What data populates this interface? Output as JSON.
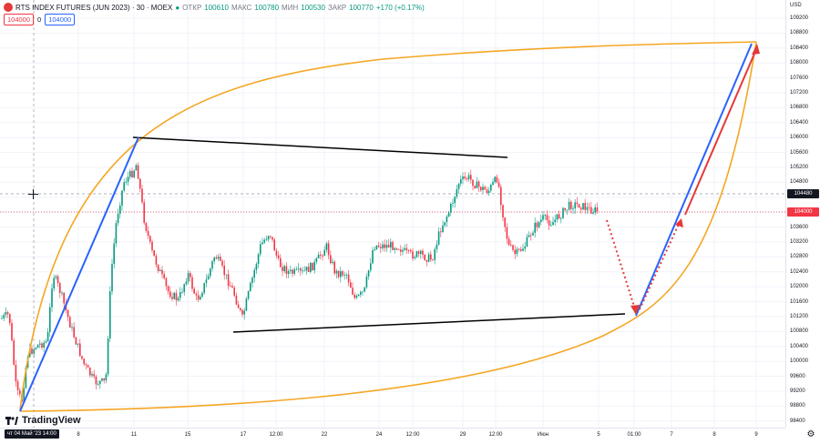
{
  "legend": {
    "symbol": "RTS INDEX FUTURES (JUN 2023) · 30 · MOEX",
    "open_label": "ОТКР",
    "open_value": "100610",
    "high_label": "МАКС",
    "high_value": "100780",
    "low_label": "МИН",
    "low_value": "100530",
    "close_label": "ЗАКР",
    "close_value": "100770",
    "change": "+170 (+0.17%)"
  },
  "order": {
    "sell": "104000",
    "qty": "0",
    "buy": "104000"
  },
  "price_axis": {
    "currency": "USD",
    "ticks": [
      "109200",
      "108800",
      "108400",
      "108000",
      "107600",
      "107200",
      "106800",
      "106400",
      "106000",
      "105600",
      "105200",
      "104800",
      "104400",
      "104000",
      "103600",
      "103200",
      "102800",
      "102400",
      "102000",
      "101600",
      "101200",
      "100800",
      "100400",
      "100000",
      "99600",
      "99200",
      "98800",
      "98400"
    ],
    "crosshair_price": "104480",
    "last_price": "104000"
  },
  "time_axis": {
    "cursor_label": "чт 04 Май '23  14:00",
    "ticks": [
      "8",
      "11",
      "15",
      "17",
      "12:00",
      "22",
      "24",
      "12:00",
      "29",
      "12:00",
      "Июн",
      "5",
      "01:00",
      "7",
      "8",
      "9"
    ]
  },
  "branding": {
    "name": "TradingView"
  },
  "colors": {
    "bull": "#089981",
    "bear": "#f23645",
    "trend_blue": "#2962ff",
    "curve_orange": "#f5a623",
    "line_black": "#000000",
    "arrow_red": "#e53935"
  },
  "chart_data": {
    "type": "candlestick",
    "title": "RTS INDEX FUTURES (JUN 2023) · 30 · MOEX",
    "ylim": [
      98200,
      109400
    ],
    "key_levels": {
      "high_area": 105400,
      "low_area": 98700,
      "last": 104000
    }
  }
}
